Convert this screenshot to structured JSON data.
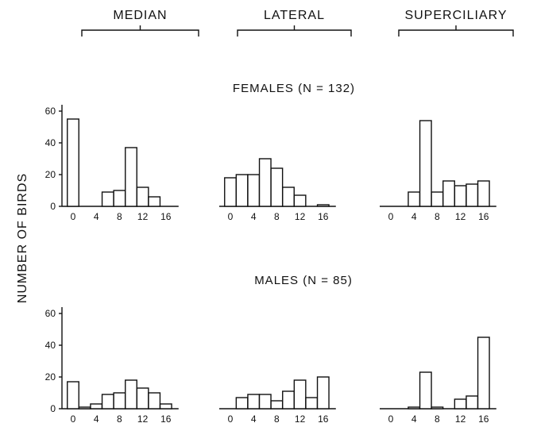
{
  "columns": [
    "MEDIAN",
    "LATERAL",
    "SUPERCILIARY"
  ],
  "ylabel": "NUMBER OF BIRDS",
  "groups": [
    {
      "label": "FEMALES (N = 132)"
    },
    {
      "label": "MALES (N = 85)"
    }
  ],
  "y_ticks": [
    "0",
    "20",
    "40",
    "60"
  ],
  "x_ticks": [
    "0",
    "4",
    "8",
    "12",
    "16"
  ],
  "chart_data": [
    {
      "type": "bar",
      "group": "FEMALES (N = 132)",
      "column": "MEDIAN",
      "x": [
        0,
        2,
        4,
        6,
        8,
        10,
        12,
        14,
        16
      ],
      "values": [
        55,
        0,
        0,
        9,
        10,
        37,
        12,
        6,
        0
      ],
      "ylim": [
        0,
        60
      ]
    },
    {
      "type": "bar",
      "group": "FEMALES (N = 132)",
      "column": "LATERAL",
      "x": [
        0,
        2,
        4,
        6,
        8,
        10,
        12,
        14,
        16
      ],
      "values": [
        18,
        20,
        20,
        30,
        24,
        12,
        7,
        0,
        1
      ],
      "ylim": [
        0,
        60
      ]
    },
    {
      "type": "bar",
      "group": "FEMALES (N = 132)",
      "column": "SUPERCILIARY",
      "x": [
        0,
        2,
        4,
        6,
        8,
        10,
        12,
        14,
        16
      ],
      "values": [
        0,
        0,
        9,
        54,
        9,
        16,
        13,
        14,
        16
      ],
      "ylim": [
        0,
        60
      ]
    },
    {
      "type": "bar",
      "group": "MALES (N = 85)",
      "column": "MEDIAN",
      "x": [
        0,
        2,
        4,
        6,
        8,
        10,
        12,
        14,
        16
      ],
      "values": [
        17,
        1,
        3,
        9,
        10,
        18,
        13,
        10,
        3
      ],
      "ylim": [
        0,
        60
      ]
    },
    {
      "type": "bar",
      "group": "MALES (N = 85)",
      "column": "LATERAL",
      "x": [
        0,
        2,
        4,
        6,
        8,
        10,
        12,
        14,
        16
      ],
      "values": [
        0,
        7,
        9,
        9,
        5,
        11,
        18,
        7,
        20
      ],
      "ylim": [
        0,
        60
      ]
    },
    {
      "type": "bar",
      "group": "MALES (N = 85)",
      "column": "SUPERCILIARY",
      "x": [
        0,
        2,
        4,
        6,
        8,
        10,
        12,
        14,
        16
      ],
      "values": [
        0,
        0,
        1,
        23,
        1,
        0,
        6,
        8,
        45
      ],
      "ylim": [
        0,
        60
      ]
    }
  ]
}
